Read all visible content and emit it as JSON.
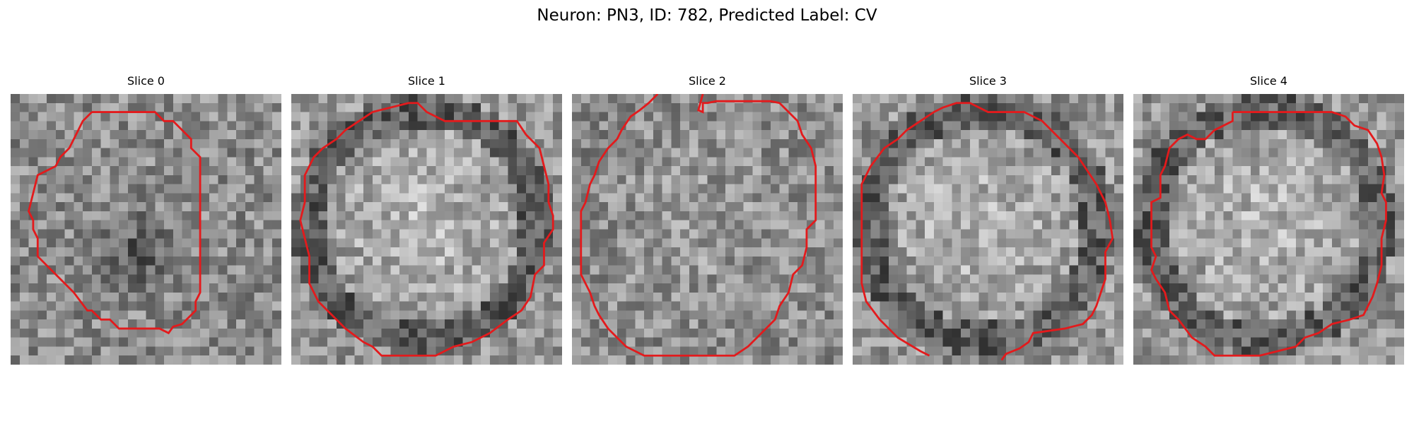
{
  "figure": {
    "title": "Neuron: PN3, ID: 782, Predicted Label: CV",
    "contour_color": "#e31a1c"
  },
  "slices": [
    {
      "title": "Slice 0",
      "pattern": "dark-blob-inside-contour"
    },
    {
      "title": "Slice 1",
      "pattern": "bright-disk-with-dark-ring"
    },
    {
      "title": "Slice 2",
      "pattern": "uniform-speckle"
    },
    {
      "title": "Slice 3",
      "pattern": "bright-disk-with-dark-ring"
    },
    {
      "title": "Slice 4",
      "pattern": "bright-disk-with-dark-ring"
    }
  ]
}
